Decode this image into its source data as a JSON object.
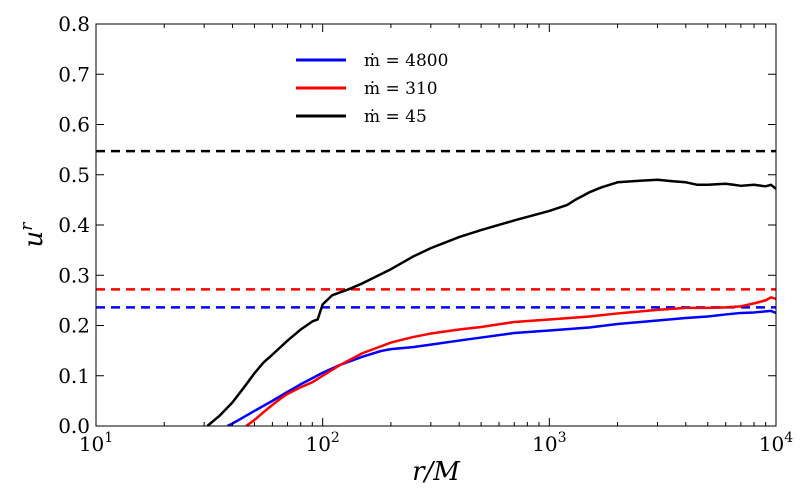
{
  "chart_data": {
    "type": "line",
    "xscale": "log",
    "xlim": [
      10,
      10000
    ],
    "ylim": [
      0,
      0.8
    ],
    "xlabel": "r/M",
    "ylabel": "u",
    "ylabel_sup": "r",
    "x_ticks": [
      {
        "value": 10,
        "base": "10",
        "exp": "1"
      },
      {
        "value": 100,
        "base": "10",
        "exp": "2"
      },
      {
        "value": 1000,
        "base": "10",
        "exp": "3"
      },
      {
        "value": 10000,
        "base": "10",
        "exp": "4"
      }
    ],
    "y_ticks": [
      {
        "value": 0.0,
        "label": "0.0"
      },
      {
        "value": 0.1,
        "label": "0.1"
      },
      {
        "value": 0.2,
        "label": "0.2"
      },
      {
        "value": 0.3,
        "label": "0.3"
      },
      {
        "value": 0.4,
        "label": "0.4"
      },
      {
        "value": 0.5,
        "label": "0.5"
      },
      {
        "value": 0.6,
        "label": "0.6"
      },
      {
        "value": 0.7,
        "label": "0.7"
      },
      {
        "value": 0.8,
        "label": "0.8"
      }
    ],
    "legend_position": "top-center",
    "series": [
      {
        "name": "ṁ = 4800",
        "color": "#0000ff",
        "reference_value": 0.236,
        "x": [
          38,
          40,
          45,
          50,
          60,
          70,
          80,
          90,
          100,
          120,
          150,
          180,
          200,
          250,
          300,
          400,
          500,
          700,
          1000,
          1500,
          2000,
          3000,
          4000,
          5000,
          6000,
          7000,
          8000,
          9000,
          9500,
          10000
        ],
        "y": [
          0.0,
          0.005,
          0.018,
          0.03,
          0.05,
          0.068,
          0.083,
          0.095,
          0.106,
          0.122,
          0.138,
          0.149,
          0.153,
          0.157,
          0.162,
          0.17,
          0.176,
          0.185,
          0.19,
          0.196,
          0.203,
          0.21,
          0.215,
          0.218,
          0.222,
          0.225,
          0.226,
          0.228,
          0.229,
          0.225
        ]
      },
      {
        "name": "ṁ = 310",
        "color": "#ff0000",
        "reference_value": 0.272,
        "x": [
          46,
          50,
          55,
          60,
          65,
          70,
          80,
          90,
          100,
          120,
          150,
          200,
          250,
          300,
          400,
          500,
          700,
          1000,
          1500,
          2000,
          3000,
          4000,
          5000,
          6000,
          7000,
          8000,
          9000,
          9500,
          10000
        ],
        "y": [
          0.0,
          0.012,
          0.028,
          0.042,
          0.054,
          0.064,
          0.077,
          0.087,
          0.1,
          0.122,
          0.145,
          0.166,
          0.177,
          0.184,
          0.192,
          0.197,
          0.207,
          0.212,
          0.218,
          0.224,
          0.231,
          0.235,
          0.235,
          0.236,
          0.238,
          0.244,
          0.25,
          0.256,
          0.253
        ]
      },
      {
        "name": "ṁ = 45",
        "color": "#000000",
        "reference_value": 0.547,
        "x": [
          31,
          35,
          40,
          45,
          50,
          55,
          60,
          70,
          80,
          90,
          95,
          100,
          110,
          130,
          150,
          200,
          250,
          300,
          400,
          500,
          700,
          1000,
          1200,
          1300,
          1500,
          1700,
          2000,
          2500,
          3000,
          3500,
          4000,
          4500,
          5000,
          6000,
          6500,
          7000,
          8000,
          9000,
          9500,
          10000
        ],
        "y": [
          0.0,
          0.02,
          0.047,
          0.077,
          0.105,
          0.127,
          0.142,
          0.17,
          0.192,
          0.208,
          0.212,
          0.242,
          0.26,
          0.272,
          0.284,
          0.312,
          0.337,
          0.354,
          0.376,
          0.39,
          0.409,
          0.428,
          0.44,
          0.45,
          0.465,
          0.475,
          0.485,
          0.488,
          0.49,
          0.487,
          0.485,
          0.48,
          0.48,
          0.482,
          0.48,
          0.478,
          0.48,
          0.477,
          0.48,
          0.472
        ]
      }
    ]
  }
}
